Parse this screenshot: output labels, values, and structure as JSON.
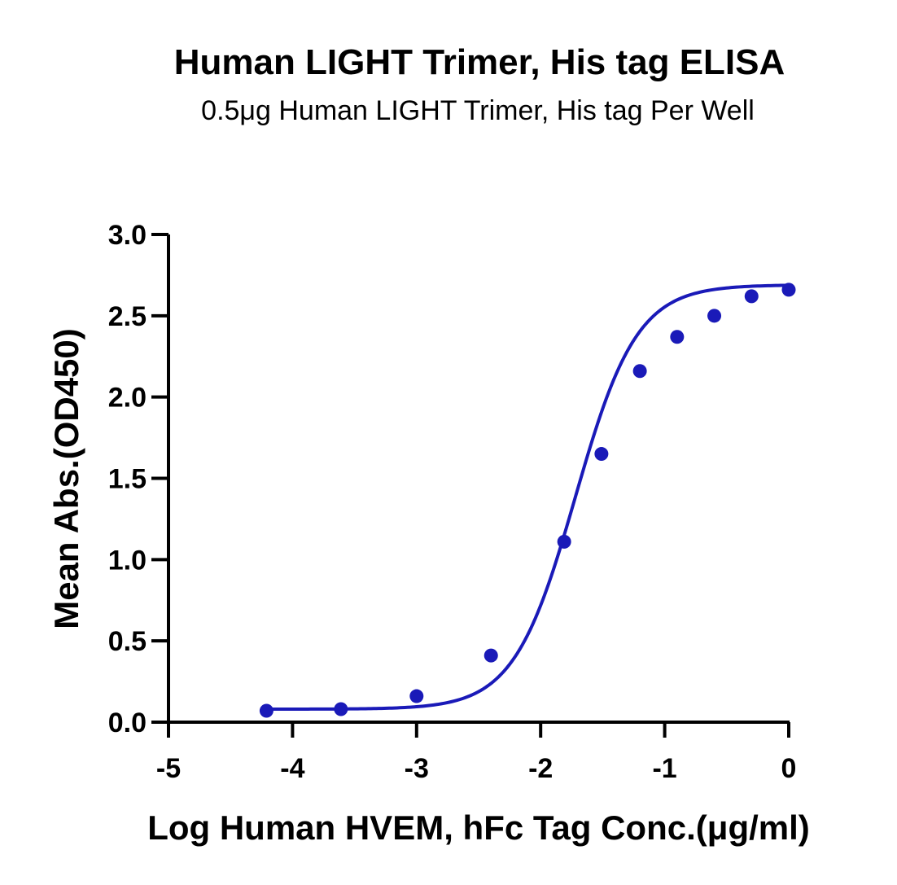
{
  "title": "Human LIGHT Trimer, His tag ELISA",
  "subtitle": "0.5μg Human LIGHT Trimer, His tag Per Well",
  "colors": {
    "series": "#1a1ab8",
    "axis": "#000000"
  },
  "chart_data": {
    "type": "scatter",
    "title": "Human LIGHT Trimer, His tag ELISA",
    "subtitle": "0.5μg Human LIGHT Trimer, His tag Per Well",
    "xlabel": "Log Human HVEM, hFc Tag Conc.(μg/ml)",
    "ylabel": "Mean Abs.(OD450)",
    "xlim": [
      -5,
      0
    ],
    "ylim": [
      0,
      3.0
    ],
    "x_ticks": [
      -5,
      -4,
      -3,
      -2,
      -1,
      0
    ],
    "x_tick_labels": [
      "-5",
      "-4",
      "-3",
      "-2",
      "-1",
      "0"
    ],
    "y_ticks": [
      0,
      0.5,
      1.0,
      1.5,
      2.0,
      2.5,
      3.0
    ],
    "y_tick_labels": [
      "0.0",
      "0.5",
      "1.0",
      "1.5",
      "2.0",
      "2.5",
      "3.0"
    ],
    "grid": false,
    "series": [
      {
        "x": [
          -4.21,
          -3.61,
          -3.0,
          -2.4,
          -1.81,
          -1.51,
          -1.2,
          -0.9,
          -0.6,
          -0.3,
          0.0
        ],
        "y": [
          0.07,
          0.08,
          0.16,
          0.41,
          1.11,
          1.65,
          2.16,
          2.37,
          2.5,
          2.62,
          2.66
        ],
        "fit": "four-parameter logistic",
        "fit_params": {
          "bottom": 0.08,
          "top": 2.69,
          "logEC50": -1.72,
          "hill": 1.75
        }
      }
    ]
  }
}
